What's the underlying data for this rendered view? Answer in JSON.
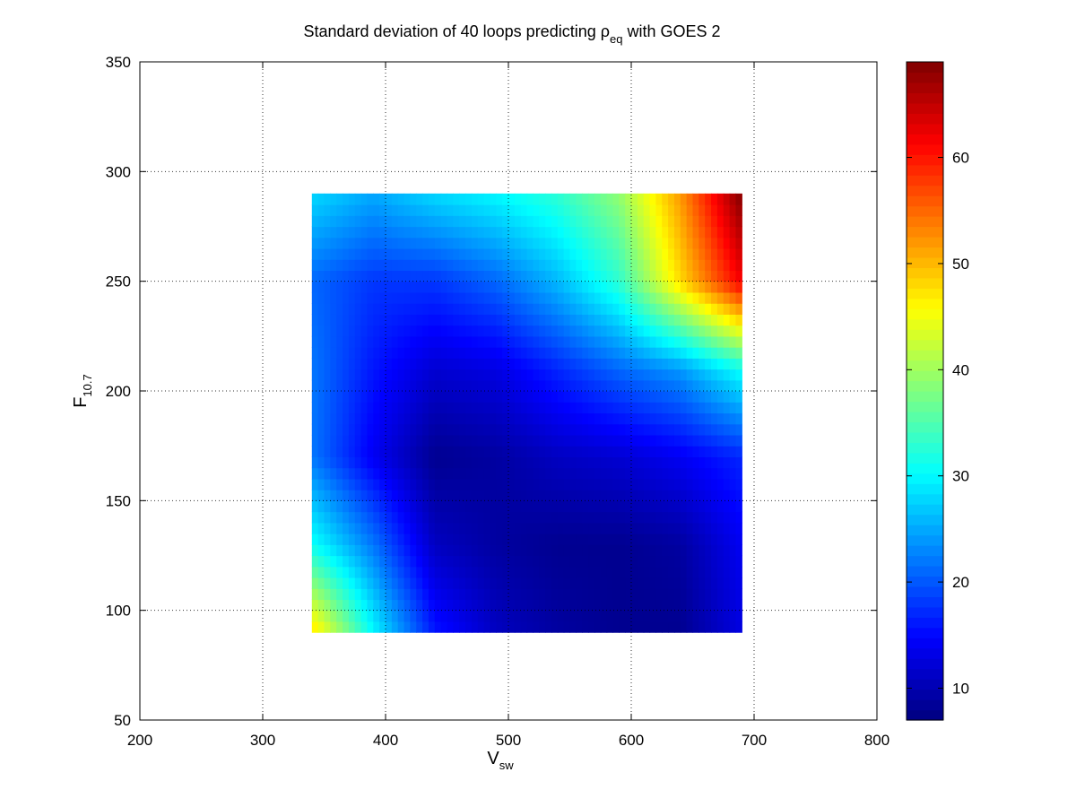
{
  "chart_data": {
    "type": "heatmap",
    "title": {
      "prefix": "Standard deviation of 40 loops predicting ",
      "symbol": "ρ",
      "symbol_sub": "eq",
      "suffix": " with GOES 2"
    },
    "xlabel": {
      "main": "V",
      "sub": "sw"
    },
    "ylabel": {
      "main": "F",
      "sub": "10.7"
    },
    "xlim": [
      200,
      800
    ],
    "ylim": [
      50,
      350
    ],
    "xticks": [
      200,
      300,
      400,
      500,
      600,
      700,
      800
    ],
    "yticks": [
      50,
      100,
      150,
      200,
      250,
      300,
      350
    ],
    "grid": true,
    "colormap": "jet",
    "clim": [
      7,
      69
    ],
    "colorbar_ticks": [
      10,
      20,
      30,
      40,
      50,
      60
    ],
    "x": [
      340,
      390,
      440,
      490,
      540,
      590,
      640,
      690
    ],
    "y": [
      90,
      130,
      170,
      210,
      250,
      290
    ],
    "z": [
      [
        48,
        30,
        16,
        11,
        9,
        8,
        8,
        13
      ],
      [
        31,
        22,
        11,
        9,
        8,
        8,
        9,
        14
      ],
      [
        22,
        14,
        8,
        9,
        11,
        12,
        14,
        17
      ],
      [
        22,
        16,
        12,
        13,
        17,
        21,
        24,
        31
      ],
      [
        21,
        18,
        18,
        21,
        26,
        33,
        48,
        62
      ],
      [
        28,
        25,
        28,
        30,
        33,
        39,
        52,
        69
      ]
    ]
  }
}
